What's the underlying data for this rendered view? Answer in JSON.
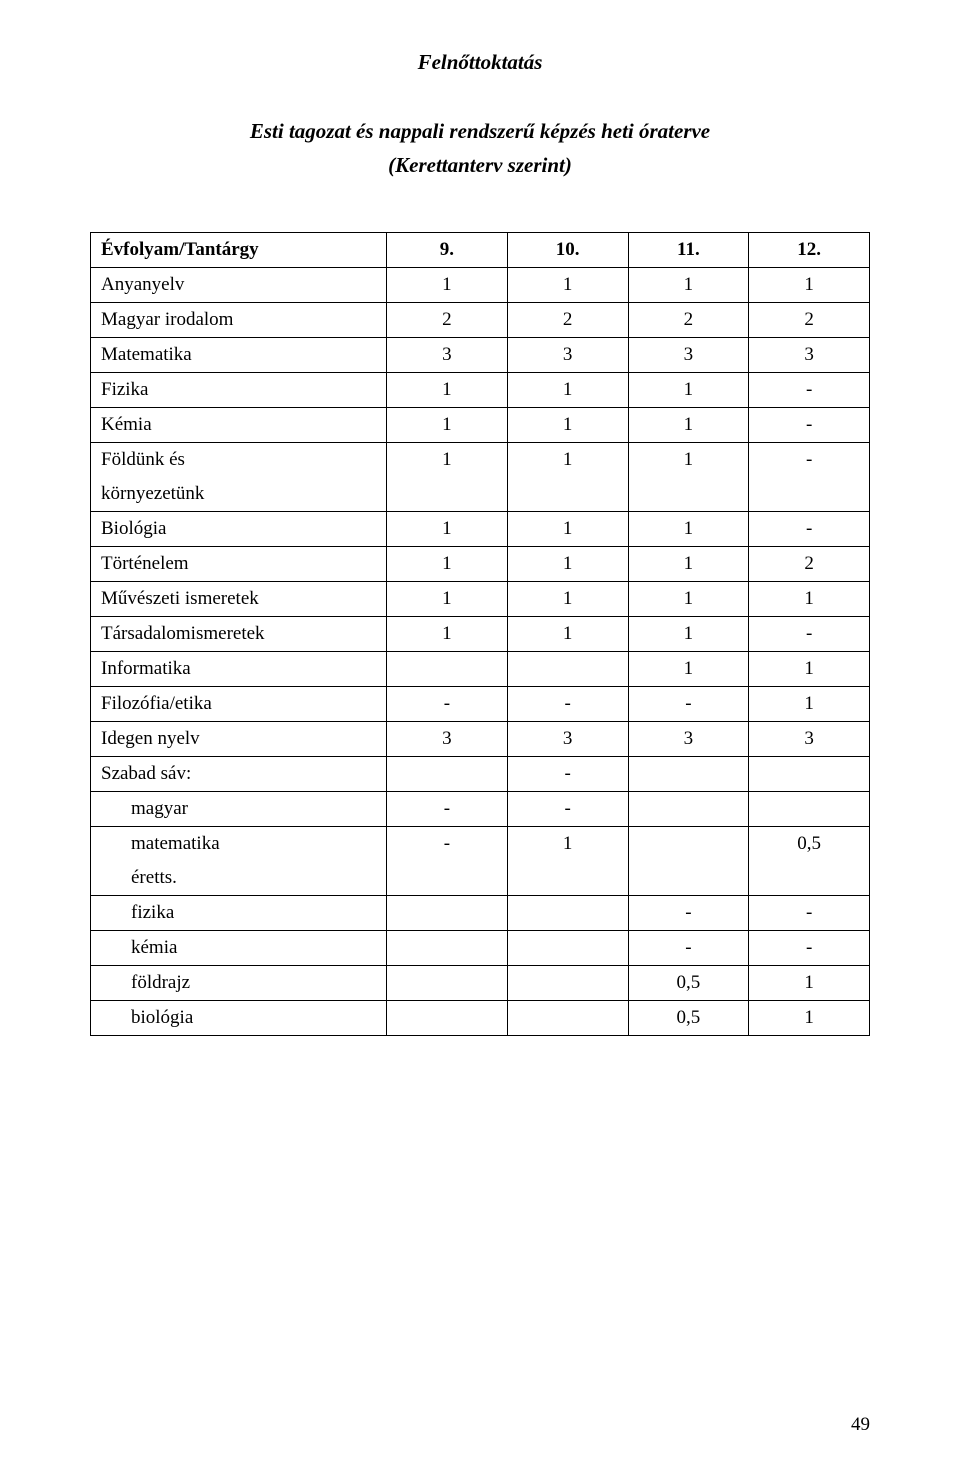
{
  "heading": "Felnőttoktatás",
  "subheading_line1": "Esti tagozat és nappali rendszerű képzés heti óraterve",
  "subheading_line2": "(Kerettanterv szerint)",
  "table": {
    "header": {
      "subject": "Évfolyam/Tantárgy",
      "c1": "9.",
      "c2": "10.",
      "c3": "11.",
      "c4": "12."
    },
    "rows": [
      {
        "label": "Anyanyelv",
        "c1": "1",
        "c2": "1",
        "c3": "1",
        "c4": "1"
      },
      {
        "label": "Magyar irodalom",
        "c1": "2",
        "c2": "2",
        "c3": "2",
        "c4": "2"
      },
      {
        "label": "Matematika",
        "c1": "3",
        "c2": "3",
        "c3": "3",
        "c4": "3"
      },
      {
        "label": "Fizika",
        "c1": "1",
        "c2": "1",
        "c3": "1",
        "c4": "-"
      },
      {
        "label": "Kémia",
        "c1": "1",
        "c2": "1",
        "c3": "1",
        "c4": "-"
      },
      {
        "label_top": "Földünk és",
        "label_bottom": "környezetünk",
        "c1": "1",
        "c2": "1",
        "c3": "1",
        "c4": "-",
        "multi": true
      },
      {
        "label": "Biológia",
        "c1": "1",
        "c2": "1",
        "c3": "1",
        "c4": "-"
      },
      {
        "label": "Történelem",
        "c1": "1",
        "c2": "1",
        "c3": "1",
        "c4": "2"
      },
      {
        "label": "Művészeti ismeretek",
        "c1": "1",
        "c2": "1",
        "c3": "1",
        "c4": "1"
      },
      {
        "label": "Társadalomismeretek",
        "c1": "1",
        "c2": "1",
        "c3": "1",
        "c4": "-"
      },
      {
        "label": "Informatika",
        "c1": "",
        "c2": "",
        "c3": "1",
        "c4": "1"
      },
      {
        "label": "Filozófia/etika",
        "c1": "-",
        "c2": "-",
        "c3": "-",
        "c4": "1"
      },
      {
        "label": "Idegen nyelv",
        "c1": "3",
        "c2": "3",
        "c3": "3",
        "c4": "3"
      },
      {
        "label": "Szabad sáv:",
        "c1": "",
        "c2": "-",
        "c3": "",
        "c4": ""
      },
      {
        "label": "magyar",
        "c1": "-",
        "c2": "-",
        "c3": "",
        "c4": "",
        "indent": true
      },
      {
        "label_top": "matematika",
        "label_bottom": "éretts.",
        "c1": "-",
        "c2": "1",
        "c3": "",
        "c4": "0,5",
        "multi": true,
        "indent": true
      },
      {
        "label": "fizika",
        "c1": "",
        "c2": "",
        "c3": "-",
        "c4": "-",
        "indent": true
      },
      {
        "label": "kémia",
        "c1": "",
        "c2": "",
        "c3": "-",
        "c4": "-",
        "indent": true
      },
      {
        "label": "földrajz",
        "c1": "",
        "c2": "",
        "c3": "0,5",
        "c4": "1",
        "indent": true
      },
      {
        "label": "biológia",
        "c1": "",
        "c2": "",
        "c3": "0,5",
        "c4": "1",
        "indent": true
      }
    ]
  },
  "page_number": "49"
}
